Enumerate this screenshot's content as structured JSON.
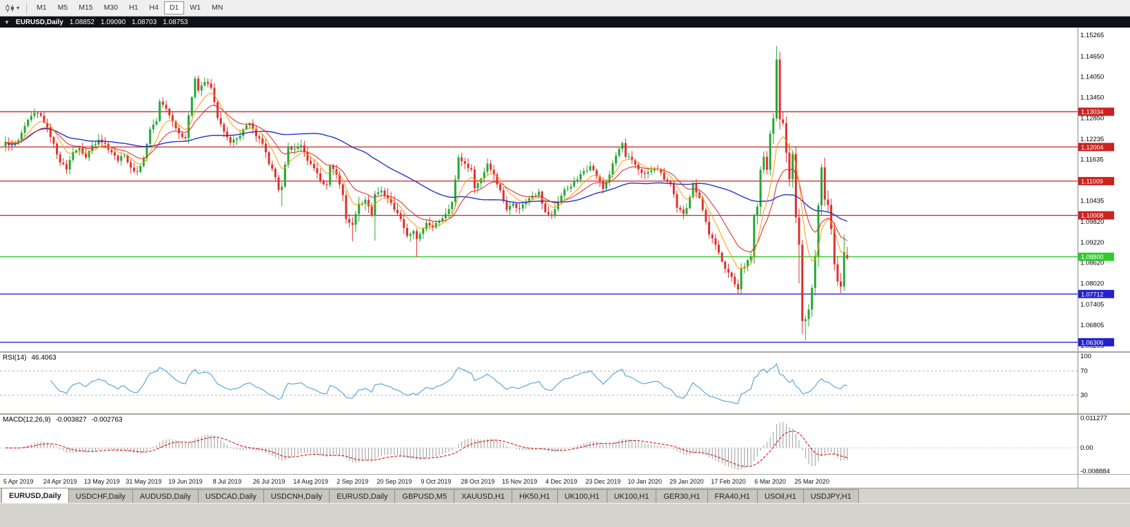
{
  "toolbar": {
    "timeframes": [
      "M1",
      "M5",
      "M15",
      "M30",
      "H1",
      "H4",
      "D1",
      "W1",
      "MN"
    ],
    "active_timeframe": "D1"
  },
  "chart_header": {
    "symbol_title": "EURUSD,Daily",
    "open": "1.08852",
    "high": "1.09090",
    "low": "1.08703",
    "close": "1.08753"
  },
  "hlines": [
    {
      "price": 1.13034,
      "label": "1.13034",
      "color": "#cc2222"
    },
    {
      "price": 1.12004,
      "label": "1.12004",
      "color": "#cc2222"
    },
    {
      "price": 1.11009,
      "label": "1.11009",
      "color": "#cc2222"
    },
    {
      "price": 1.10008,
      "label": "1.10008",
      "color": "#cc2222"
    },
    {
      "price": 1.088,
      "label": "1.08800",
      "color": "#2ecc2e"
    },
    {
      "price": 1.07712,
      "label": "1.07712",
      "color": "#2222cc"
    },
    {
      "price": 1.06306,
      "label": "1.06306",
      "color": "#2222cc"
    }
  ],
  "rsi_panel": {
    "label": "RSI(14)",
    "value": "46.4063",
    "axis_ticks": [
      "100",
      "70",
      "30"
    ],
    "levels": [
      70,
      30
    ]
  },
  "macd_panel": {
    "label": "MACD(12,26,9)",
    "value_macd": "-0.003827",
    "value_signal": "-0.002763",
    "axis_ticks": [
      "0.011277",
      "0.00",
      "-0.008884"
    ]
  },
  "tabs": {
    "active_index": 0,
    "items": [
      "EURUSD,Daily",
      "USDCHF,Daily",
      "AUDUSD,Daily",
      "USDCAD,Daily",
      "USDCNH,Daily",
      "EURUSD,Daily",
      "GBPUSD,M5",
      "XAUUSD,H1",
      "HK50,H1",
      "UK100,H1",
      "UK100,H1",
      "GER30,H1",
      "FRA40,H1",
      "USOil,H1",
      "USDJPY,H1"
    ]
  },
  "colors": {
    "bull": "#23a833",
    "bear": "#de3030",
    "ma_slow": "#2233cc",
    "ma_mid": "#dd2222",
    "ma_fast": "#ff9900",
    "rsi_line": "#4f9fd8",
    "macd_hist": "#9a9a9a",
    "macd_signal": "#cc0000"
  },
  "chart_data": {
    "type": "candlestick",
    "symbol": "EURUSD",
    "timeframe": "Daily",
    "bars": 263,
    "price_range": [
      1.0604,
      1.1549
    ],
    "y_ticks": [
      "1.15265",
      "1.14650",
      "1.14050",
      "1.13450",
      "1.12850",
      "1.12235",
      "1.11635",
      "1.11035",
      "1.10435",
      "1.09820",
      "1.09220",
      "1.08620",
      "1.08020",
      "1.07405",
      "1.06805",
      "1.06205"
    ],
    "x_labels": [
      "5 Apr 2019",
      "24 Apr 2019",
      "13 May 2019",
      "31 May 2019",
      "19 Jun 2019",
      "8 Jul 2019",
      "26 Jul 2019",
      "14 Aug 2019",
      "2 Sep 2019",
      "20 Sep 2019",
      "9 Oct 2019",
      "28 Oct 2019",
      "15 Nov 2019",
      "4 Dec 2019",
      "23 Dec 2019",
      "10 Jan 2020",
      "29 Jan 2020",
      "17 Feb 2020",
      "6 Mar 2020",
      "25 Mar 2020"
    ],
    "x_label_first_bar": 4,
    "x_label_step": 13,
    "close_anchors": [
      [
        0,
        1.1215
      ],
      [
        2,
        1.1205
      ],
      [
        4,
        1.122
      ],
      [
        6,
        1.1262
      ],
      [
        9,
        1.13
      ],
      [
        11,
        1.1292
      ],
      [
        13,
        1.1258
      ],
      [
        15,
        1.121
      ],
      [
        17,
        1.1155
      ],
      [
        19,
        1.1135
      ],
      [
        21,
        1.1185
      ],
      [
        23,
        1.1198
      ],
      [
        25,
        1.117
      ],
      [
        27,
        1.1205
      ],
      [
        29,
        1.1222
      ],
      [
        31,
        1.121
      ],
      [
        33,
        1.1185
      ],
      [
        35,
        1.116
      ],
      [
        37,
        1.1176
      ],
      [
        39,
        1.114
      ],
      [
        41,
        1.1128
      ],
      [
        43,
        1.1167
      ],
      [
        45,
        1.1252
      ],
      [
        47,
        1.1276
      ],
      [
        48,
        1.1333
      ],
      [
        50,
        1.1312
      ],
      [
        52,
        1.1275
      ],
      [
        54,
        1.124
      ],
      [
        56,
        1.1226
      ],
      [
        57,
        1.1293
      ],
      [
        59,
        1.14
      ],
      [
        60,
        1.1365
      ],
      [
        62,
        1.139
      ],
      [
        64,
        1.1373
      ],
      [
        66,
        1.1285
      ],
      [
        68,
        1.1245
      ],
      [
        70,
        1.1213
      ],
      [
        72,
        1.1225
      ],
      [
        74,
        1.1252
      ],
      [
        76,
        1.127
      ],
      [
        78,
        1.1232
      ],
      [
        80,
        1.121
      ],
      [
        82,
        1.115
      ],
      [
        84,
        1.1112
      ],
      [
        85,
        1.1075
      ],
      [
        86,
        1.1085
      ],
      [
        88,
        1.1202
      ],
      [
        90,
        1.1195
      ],
      [
        92,
        1.1205
      ],
      [
        94,
        1.116
      ],
      [
        96,
        1.1139
      ],
      [
        98,
        1.11
      ],
      [
        100,
        1.109
      ],
      [
        101,
        1.1145
      ],
      [
        103,
        1.112
      ],
      [
        105,
        1.106
      ],
      [
        106,
        1.099
      ],
      [
        108,
        1.0973
      ],
      [
        110,
        1.1035
      ],
      [
        112,
        1.1046
      ],
      [
        114,
        1.1
      ],
      [
        115,
        1.1063
      ],
      [
        117,
        1.1073
      ],
      [
        119,
        1.105
      ],
      [
        121,
        1.1017
      ],
      [
        123,
        1.099
      ],
      [
        125,
        1.0941
      ],
      [
        127,
        1.0955
      ],
      [
        128,
        1.0932
      ],
      [
        130,
        1.0962
      ],
      [
        131,
        1.0979
      ],
      [
        133,
        1.0965
      ],
      [
        135,
        1.0985
      ],
      [
        137,
        1.1005
      ],
      [
        139,
        1.104
      ],
      [
        141,
        1.117
      ],
      [
        143,
        1.1152
      ],
      [
        145,
        1.1135
      ],
      [
        146,
        1.108
      ],
      [
        148,
        1.1108
      ],
      [
        150,
        1.1152
      ],
      [
        152,
        1.112
      ],
      [
        154,
        1.1074
      ],
      [
        156,
        1.1017
      ],
      [
        158,
        1.1035
      ],
      [
        160,
        1.1021
      ],
      [
        162,
        1.104
      ],
      [
        164,
        1.1058
      ],
      [
        166,
        1.107
      ],
      [
        168,
        1.101
      ],
      [
        170,
        1.1
      ],
      [
        172,
        1.104
      ],
      [
        174,
        1.1077
      ],
      [
        176,
        1.1085
      ],
      [
        178,
        1.1105
      ],
      [
        180,
        1.113
      ],
      [
        182,
        1.1145
      ],
      [
        184,
        1.1115
      ],
      [
        186,
        1.1078
      ],
      [
        188,
        1.112
      ],
      [
        190,
        1.1175
      ],
      [
        192,
        1.1212
      ],
      [
        193,
        1.1172
      ],
      [
        195,
        1.1162
      ],
      [
        197,
        1.1135
      ],
      [
        199,
        1.1122
      ],
      [
        201,
        1.1132
      ],
      [
        203,
        1.1136
      ],
      [
        205,
        1.1105
      ],
      [
        207,
        1.1092
      ],
      [
        209,
        1.1023
      ],
      [
        211,
        1.1005
      ],
      [
        212,
        1.1022
      ],
      [
        214,
        1.1093
      ],
      [
        216,
        1.1052
      ],
      [
        218,
        1.0982
      ],
      [
        219,
        1.0945
      ],
      [
        221,
        1.0915
      ],
      [
        223,
        1.0866
      ],
      [
        225,
        1.0834
      ],
      [
        227,
        1.08
      ],
      [
        228,
        1.0785
      ],
      [
        229,
        1.0846
      ],
      [
        230,
        1.0851
      ],
      [
        232,
        1.0881
      ],
      [
        233,
        1.0999
      ],
      [
        234,
        1.1026
      ],
      [
        235,
        1.1134
      ],
      [
        236,
        1.1172
      ],
      [
        237,
        1.1134
      ],
      [
        238,
        1.1239
      ],
      [
        239,
        1.1284
      ],
      [
        240,
        1.1456
      ],
      [
        241,
        1.1281
      ],
      [
        242,
        1.127
      ],
      [
        243,
        1.1184
      ],
      [
        244,
        1.1106
      ],
      [
        245,
        1.118
      ],
      [
        246,
        1.0995
      ],
      [
        247,
        1.0915
      ],
      [
        248,
        1.0692
      ],
      [
        249,
        1.0698
      ],
      [
        250,
        1.0726
      ],
      [
        251,
        1.0789
      ],
      [
        252,
        1.0881
      ],
      [
        253,
        1.103
      ],
      [
        254,
        1.1141
      ],
      [
        255,
        1.1047
      ],
      [
        256,
        1.1031
      ],
      [
        257,
        1.0961
      ],
      [
        258,
        1.0858
      ],
      [
        259,
        1.0808
      ],
      [
        260,
        1.0793
      ],
      [
        261,
        1.0893
      ],
      [
        262,
        1.0875
      ]
    ],
    "wick_overrides": {
      "86": [
        null,
        1.1027
      ],
      "108": [
        null,
        1.0925
      ],
      "115": [
        null,
        1.0927
      ],
      "128": [
        null,
        1.0879
      ],
      "240": [
        1.1495,
        null
      ],
      "247": [
        null,
        1.0802
      ],
      "248": [
        null,
        1.0655
      ],
      "249": [
        null,
        1.0636
      ],
      "261": [
        1.0945,
        null
      ]
    },
    "last_candle": {
      "open": 1.08852,
      "high": 1.0909,
      "low": 1.08703,
      "close": 1.08753
    },
    "ma_lines": [
      {
        "method": "sma",
        "period": 55,
        "color_key": "ma_slow",
        "width": 1.4
      },
      {
        "method": "ema",
        "period": 17,
        "color_key": "ma_mid",
        "width": 1
      },
      {
        "method": "ema",
        "period": 8,
        "color_key": "ma_fast",
        "width": 1
      }
    ]
  }
}
